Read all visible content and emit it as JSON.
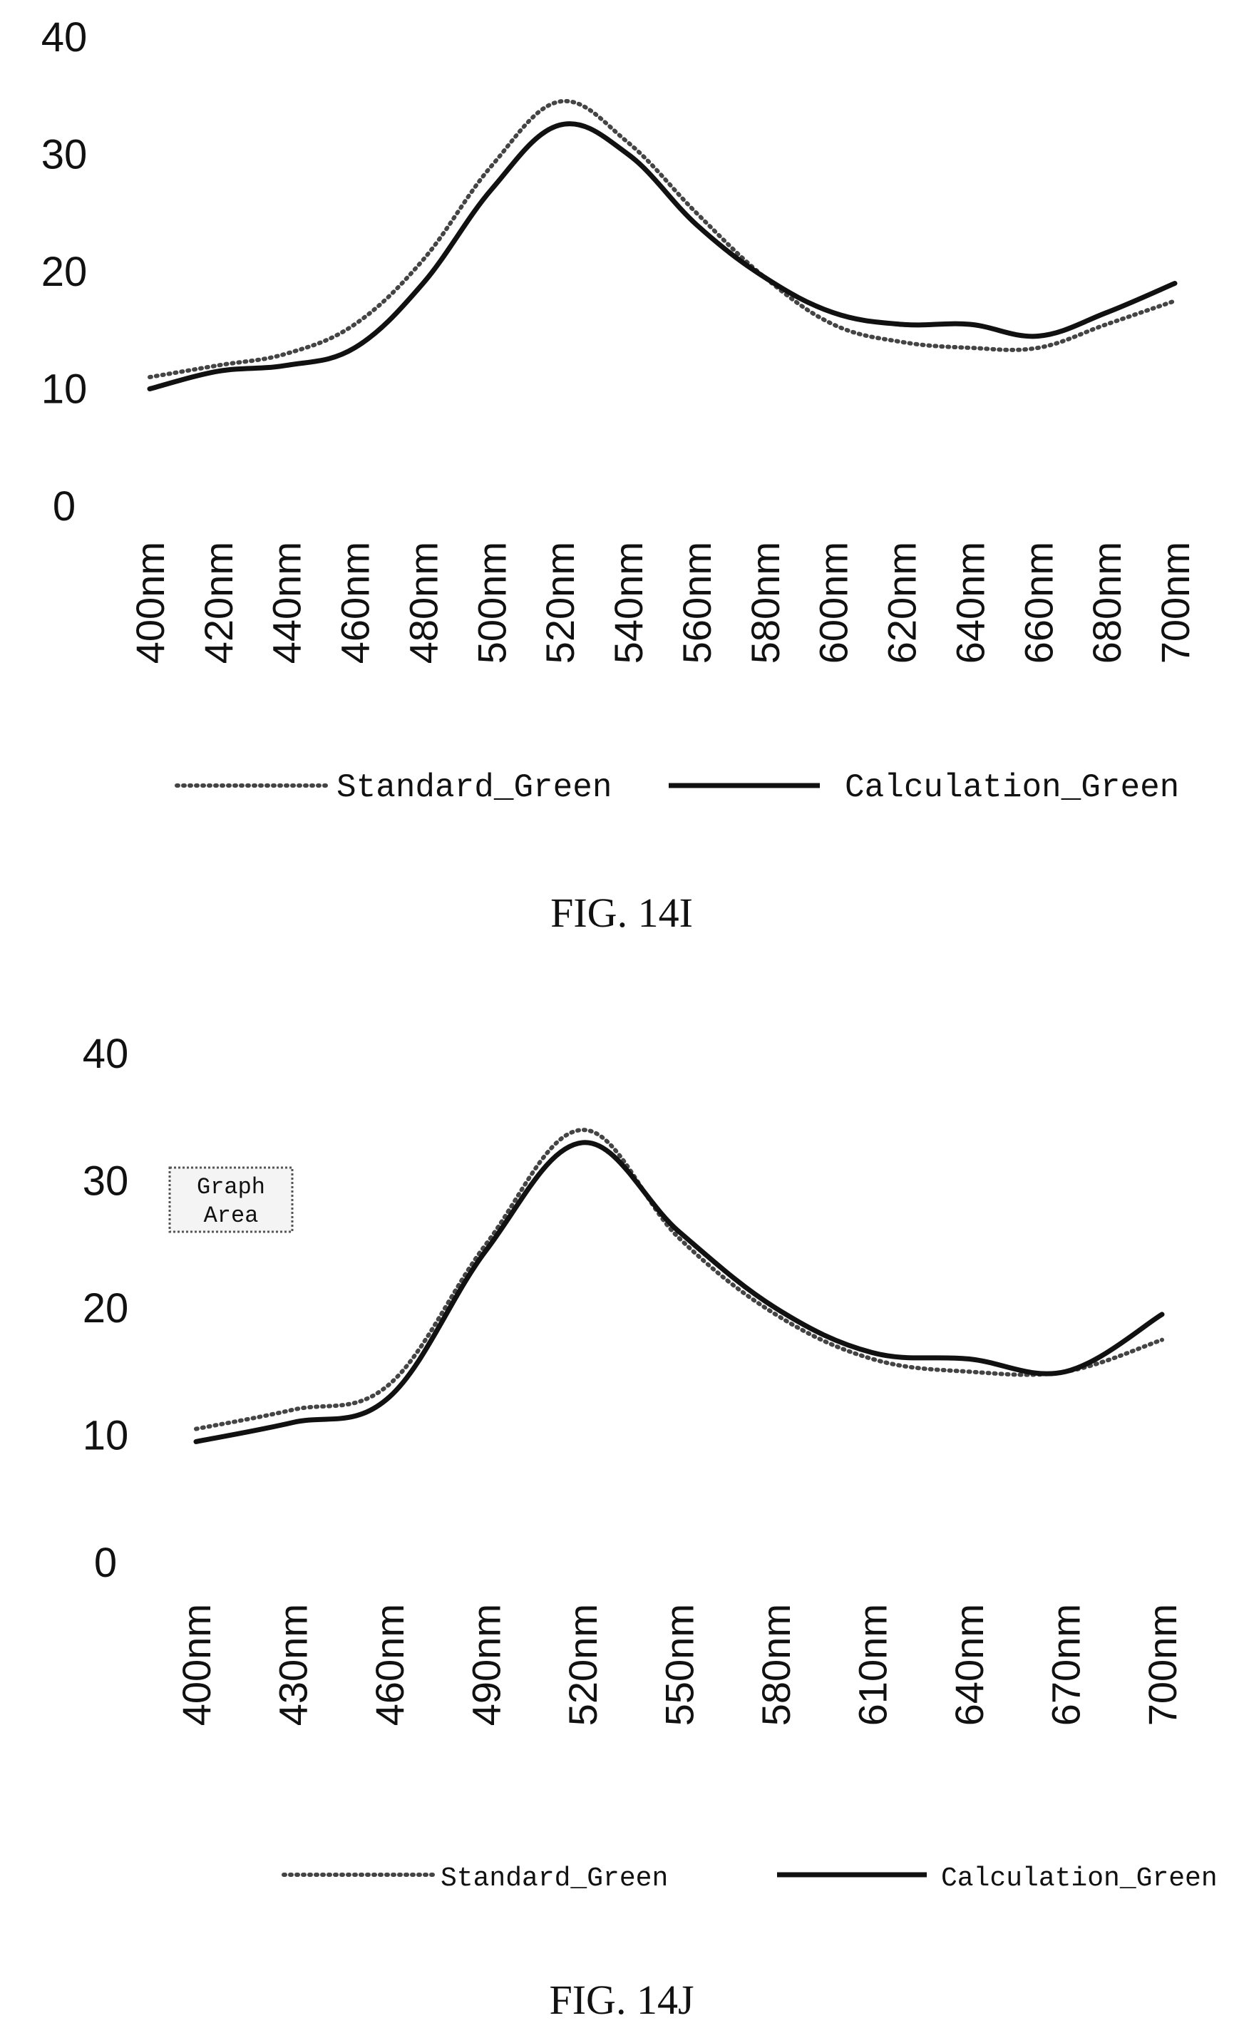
{
  "chart_data": [
    {
      "type": "line",
      "caption": "FIG. 14I",
      "ylim": [
        0,
        40
      ],
      "yticks": [
        0,
        10,
        20,
        30,
        40
      ],
      "categories": [
        "400nm",
        "420nm",
        "440nm",
        "460nm",
        "480nm",
        "500nm",
        "520nm",
        "540nm",
        "560nm",
        "580nm",
        "600nm",
        "620nm",
        "640nm",
        "660nm",
        "680nm",
        "700nm"
      ],
      "legend_position": "bottom",
      "grid": false,
      "series": [
        {
          "name": "Standard_Green",
          "style": "dotted",
          "values": [
            11,
            12,
            13,
            15.5,
            21,
            29,
            34.5,
            31,
            25,
            19.5,
            15.5,
            14,
            13.5,
            13.5,
            15.5,
            17.5
          ]
        },
        {
          "name": "Calculation_Green",
          "style": "solid",
          "values": [
            10,
            11.5,
            12,
            13.5,
            19,
            27,
            32.5,
            30,
            24,
            19.5,
            16.5,
            15.5,
            15.5,
            14.5,
            16.5,
            19
          ]
        }
      ]
    },
    {
      "type": "line",
      "caption": "FIG. 14J",
      "ylim": [
        0,
        40
      ],
      "yticks": [
        0,
        10,
        20,
        30,
        40
      ],
      "categories": [
        "400nm",
        "430nm",
        "460nm",
        "490nm",
        "520nm",
        "550nm",
        "580nm",
        "610nm",
        "640nm",
        "670nm",
        "700nm"
      ],
      "legend_position": "bottom",
      "grid": false,
      "annotation": {
        "lines": [
          "Graph",
          "Area"
        ]
      },
      "series": [
        {
          "name": "Standard_Green",
          "style": "dotted",
          "values": [
            10.5,
            12,
            14,
            25,
            34,
            25.5,
            19.5,
            16,
            15,
            15,
            17.5
          ]
        },
        {
          "name": "Calculation_Green",
          "style": "solid",
          "values": [
            9.5,
            11,
            13,
            24.5,
            33,
            26,
            20,
            16.5,
            16,
            15,
            19.5
          ]
        }
      ]
    }
  ]
}
